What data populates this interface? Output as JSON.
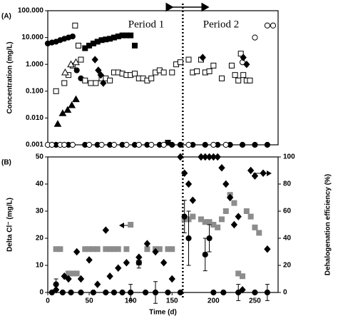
{
  "chart_data": [
    {
      "type": "scatter",
      "label": "(A)",
      "ylabel": "Concentration (mg/L)",
      "annotations": [
        "Period 1",
        "Period 2"
      ],
      "divider_x": 163,
      "xlim": [
        0,
        278
      ],
      "ylim": [
        0.001,
        100
      ],
      "log_y": true,
      "yticks": [
        {
          "value": 0.001,
          "label": "0.001"
        },
        {
          "value": 0.01,
          "label": "0.010"
        },
        {
          "value": 0.1,
          "label": "0.100"
        },
        {
          "value": 1,
          "label": "1.000"
        },
        {
          "value": 10,
          "label": "10.000"
        },
        {
          "value": 100,
          "label": "100.000"
        }
      ],
      "series": [
        {
          "marker": "circle",
          "color": "#000",
          "fill": "#000",
          "x": [
            0,
            5,
            10,
            15,
            20,
            25,
            30,
            35,
            40
          ],
          "values": [
            6,
            6.5,
            7,
            8,
            9,
            10,
            11,
            0.6,
            0.3
          ]
        },
        {
          "marker": "circle",
          "color": "#000",
          "fill": "#000",
          "x": [
            10,
            25,
            45,
            60,
            75,
            90,
            105,
            120,
            135,
            150,
            160,
            175,
            190,
            205,
            220,
            235,
            250,
            265
          ],
          "values": [
            0.001,
            0.001,
            0.001,
            0.001,
            0.001,
            0.001,
            0.001,
            0.001,
            0.001,
            0.001,
            0.001,
            0.001,
            0.001,
            0.001,
            0.001,
            0.001,
            0.001,
            0.001
          ]
        },
        {
          "marker": "square",
          "color": "#000",
          "fill": "#000",
          "x": [
            45,
            50,
            55,
            60,
            65,
            70,
            75,
            80,
            85,
            90,
            95,
            100,
            105,
            145
          ],
          "values": [
            4,
            5,
            6,
            7,
            8,
            8.5,
            9,
            10,
            11,
            12,
            12,
            12,
            5,
            0.0012
          ]
        },
        {
          "marker": "square",
          "color": "#000",
          "fill": "#fff",
          "x": [
            10,
            20,
            25,
            30,
            33,
            37,
            40,
            45,
            52,
            58,
            65,
            70,
            75,
            80,
            85,
            90,
            95,
            100,
            105,
            110,
            115,
            120,
            125,
            130,
            135,
            140,
            150,
            155,
            160,
            170,
            175,
            180,
            185,
            190,
            195,
            200,
            210,
            222,
            226,
            230,
            233,
            236,
            240,
            244
          ],
          "values": [
            0.1,
            0.2,
            0.4,
            0.9,
            28,
            5,
            1.5,
            0.25,
            0.2,
            0.2,
            0.3,
            0.3,
            0.25,
            0.5,
            0.5,
            0.45,
            0.4,
            0.4,
            0.45,
            0.3,
            0.3,
            0.25,
            0.3,
            0.5,
            0.6,
            0.5,
            0.5,
            1.0,
            1.2,
            1.5,
            0.5,
            0.55,
            1.5,
            0.5,
            0.55,
            0.9,
            0.3,
            0.9,
            0.4,
            0.25,
            2.5,
            0.4,
            0.25,
            0.25
          ]
        },
        {
          "marker": "circle",
          "color": "#000",
          "fill": "#fff",
          "x": [
            0,
            5,
            15,
            20,
            30,
            50,
            65,
            80,
            95,
            110,
            125,
            140,
            170,
            200,
            215,
            235,
            250,
            265,
            272
          ],
          "values": [
            0.001,
            0.001,
            0.001,
            0.001,
            0.001,
            0.001,
            0.001,
            0.001,
            0.001,
            0.001,
            0.001,
            0.001,
            0.001,
            0.001,
            0.001,
            1.2,
            10,
            28,
            28
          ]
        },
        {
          "marker": "triangle",
          "color": "#000",
          "fill": "#000",
          "x": [
            12,
            18,
            24,
            29,
            34
          ],
          "values": [
            0.006,
            0.015,
            0.02,
            0.03,
            0.05
          ]
        },
        {
          "marker": "triangle",
          "color": "#000",
          "fill": "#fff",
          "x": [
            21,
            28,
            34
          ],
          "values": [
            0.5,
            1.0,
            1.2
          ]
        },
        {
          "marker": "diamond",
          "color": "#000",
          "fill": "#000",
          "x": [
            57,
            61,
            64,
            67,
            187,
            236,
            240
          ],
          "values": [
            1.5,
            0.6,
            0.4,
            0.2,
            1.8,
            1.8,
            1.0
          ]
        }
      ]
    },
    {
      "type": "scatter",
      "label": "(B)",
      "xlabel": "Time (d)",
      "ylabel": "Delta Cl⁻  (mg/L)",
      "y2label": "Dehalogenation efficiency (%)",
      "xlim": [
        0,
        278
      ],
      "xticks": [
        0,
        50,
        100,
        150,
        200,
        250
      ],
      "ylim": [
        0,
        50
      ],
      "yticks": [
        0,
        10,
        20,
        30,
        40,
        50
      ],
      "y2lim": [
        0,
        100
      ],
      "y2ticks": [
        0,
        20,
        40,
        60,
        80,
        100
      ],
      "series": [
        {
          "marker": "square",
          "color": "#8c8c8c",
          "fill": "#8c8c8c",
          "x": [
            10,
            15,
            25,
            30,
            35,
            45,
            50,
            55,
            60,
            70,
            75,
            80,
            85,
            95,
            100,
            110,
            120,
            130,
            135,
            145,
            150,
            165,
            170,
            175,
            185,
            190,
            195,
            200,
            205,
            210,
            215,
            220,
            225,
            230,
            235,
            240,
            245,
            250,
            255
          ],
          "values": [
            16,
            16,
            7,
            7,
            7,
            16,
            16,
            16,
            16,
            16,
            16,
            16,
            16,
            16,
            25,
            11,
            16,
            16,
            16,
            16,
            16,
            27,
            27,
            28,
            27,
            26,
            26,
            25,
            24,
            27,
            30,
            36,
            33,
            7,
            6,
            30,
            28,
            24,
            22
          ]
        },
        {
          "marker": "diamond",
          "color": "#000",
          "fill": "#000",
          "axis": "y2",
          "x": [
            10,
            20,
            25,
            35,
            40,
            50,
            60,
            70,
            75,
            85,
            95,
            110,
            120,
            130,
            140,
            150,
            160,
            165,
            170,
            175,
            185,
            190,
            195,
            200,
            205,
            210,
            215,
            220,
            225,
            230,
            235,
            245,
            250,
            260,
            265
          ],
          "values": [
            2,
            12,
            10,
            30,
            10,
            24,
            6,
            46,
            12,
            18,
            22,
            26,
            36,
            30,
            22,
            10,
            100,
            88,
            80,
            68,
            100,
            100,
            100,
            100,
            100,
            92,
            80,
            70,
            50,
            56,
            2,
            90,
            86,
            88,
            32
          ]
        },
        {
          "marker": "circle",
          "color": "#000",
          "fill": "#000",
          "x": [
            5,
            10,
            18,
            28,
            40,
            55,
            70,
            80,
            90,
            100,
            110,
            118,
            130,
            145,
            160,
            165,
            170,
            190,
            195,
            200,
            212,
            230,
            250,
            265
          ],
          "values": [
            0,
            3,
            0,
            0,
            0,
            0,
            0,
            0,
            0,
            0,
            11,
            0,
            0,
            0,
            0,
            28,
            20,
            14,
            20,
            0,
            0,
            0,
            0,
            0
          ],
          "errors": [
            null,
            2,
            null,
            null,
            null,
            null,
            null,
            null,
            null,
            3,
            2,
            null,
            4,
            null,
            null,
            6,
            10,
            6,
            5,
            null,
            null,
            3,
            null,
            3
          ]
        }
      ]
    }
  ]
}
